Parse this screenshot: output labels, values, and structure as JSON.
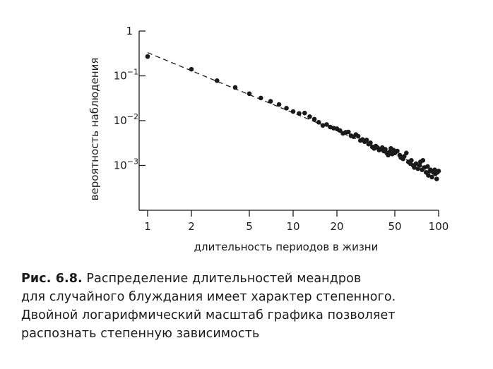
{
  "chart_data": {
    "type": "scatter",
    "xscale": "log",
    "yscale": "log",
    "xlim": [
      1,
      100
    ],
    "ylim": [
      0.0001,
      1
    ],
    "xlabel": "длительность периодов в жизни",
    "ylabel": "вероятность  наблюдения",
    "x_ticks": [
      {
        "value": 1,
        "label": "1"
      },
      {
        "value": 2,
        "label": "2"
      },
      {
        "value": 5,
        "label": "5"
      },
      {
        "value": 10,
        "label": "10"
      },
      {
        "value": 20,
        "label": "20"
      },
      {
        "value": 50,
        "label": "50"
      },
      {
        "value": 100,
        "label": "100"
      }
    ],
    "y_ticks": [
      {
        "value": 1,
        "label": "1",
        "sup": ""
      },
      {
        "value": 0.1,
        "label": "10",
        "sup": "−1"
      },
      {
        "value": 0.01,
        "label": "10",
        "sup": "−2"
      },
      {
        "value": 0.001,
        "label": "10",
        "sup": "−3"
      }
    ],
    "fit_line": {
      "style": "dashed",
      "from": [
        1,
        0.33
      ],
      "to": [
        100,
        0.00068
      ]
    },
    "points": [
      [
        1,
        0.27
      ],
      [
        2,
        0.14
      ],
      [
        3,
        0.078
      ],
      [
        4,
        0.055
      ],
      [
        5,
        0.04
      ],
      [
        6,
        0.032
      ],
      [
        7,
        0.027
      ],
      [
        8,
        0.023
      ],
      [
        9,
        0.019
      ],
      [
        10,
        0.016
      ],
      [
        11,
        0.0145
      ],
      [
        12,
        0.0148
      ],
      [
        13,
        0.0123
      ],
      [
        14,
        0.0108
      ],
      [
        15,
        0.0092
      ],
      [
        16,
        0.0078
      ],
      [
        17,
        0.0082
      ],
      [
        18,
        0.0072
      ],
      [
        19,
        0.0068
      ],
      [
        20,
        0.0066
      ],
      [
        21,
        0.006
      ],
      [
        22,
        0.0052
      ],
      [
        23,
        0.0055
      ],
      [
        24,
        0.0056
      ],
      [
        25,
        0.0046
      ],
      [
        26,
        0.0044
      ],
      [
        27,
        0.0049
      ],
      [
        28,
        0.0045
      ],
      [
        29,
        0.0036
      ],
      [
        30,
        0.0038
      ],
      [
        31,
        0.0034
      ],
      [
        32,
        0.0037
      ],
      [
        33,
        0.003
      ],
      [
        34,
        0.0032
      ],
      [
        35,
        0.0026
      ],
      [
        36,
        0.0024
      ],
      [
        37,
        0.0027
      ],
      [
        38,
        0.0025
      ],
      [
        39,
        0.0022
      ],
      [
        40,
        0.0023
      ],
      [
        41,
        0.0025
      ],
      [
        42,
        0.0021
      ],
      [
        43,
        0.0023
      ],
      [
        44,
        0.0019
      ],
      [
        45,
        0.0017
      ],
      [
        46,
        0.002
      ],
      [
        47,
        0.0024
      ],
      [
        48,
        0.0018
      ],
      [
        49,
        0.0022
      ],
      [
        50,
        0.0019
      ],
      [
        52,
        0.0021
      ],
      [
        54,
        0.0017
      ],
      [
        55,
        0.0015
      ],
      [
        57,
        0.0014
      ],
      [
        58,
        0.0016
      ],
      [
        60,
        0.0019
      ],
      [
        62,
        0.0012
      ],
      [
        64,
        0.0011
      ],
      [
        65,
        0.0013
      ],
      [
        67,
        0.001
      ],
      [
        68,
        0.0009
      ],
      [
        70,
        0.0011
      ],
      [
        72,
        0.00085
      ],
      [
        74,
        0.001
      ],
      [
        75,
        0.0012
      ],
      [
        77,
        0.0008
      ],
      [
        78,
        0.0013
      ],
      [
        80,
        0.0009
      ],
      [
        82,
        0.0007
      ],
      [
        84,
        0.00095
      ],
      [
        85,
        0.0006
      ],
      [
        87,
        0.00075
      ],
      [
        88,
        0.0008
      ],
      [
        90,
        0.00055
      ],
      [
        92,
        0.0007
      ],
      [
        94,
        0.0008
      ],
      [
        95,
        0.00065
      ],
      [
        97,
        0.0005
      ],
      [
        98,
        0.0007
      ],
      [
        100,
        0.00075
      ]
    ],
    "grid": false,
    "legend": "none"
  },
  "caption": {
    "label": "Рис. 6.8.",
    "lines": [
      " Распределение длительностей меандров",
      "для случайного блуждания имеет характер степенного.",
      "Двойной логарифмический масштаб графика позволяет",
      "распознать степенную зависимость"
    ]
  }
}
